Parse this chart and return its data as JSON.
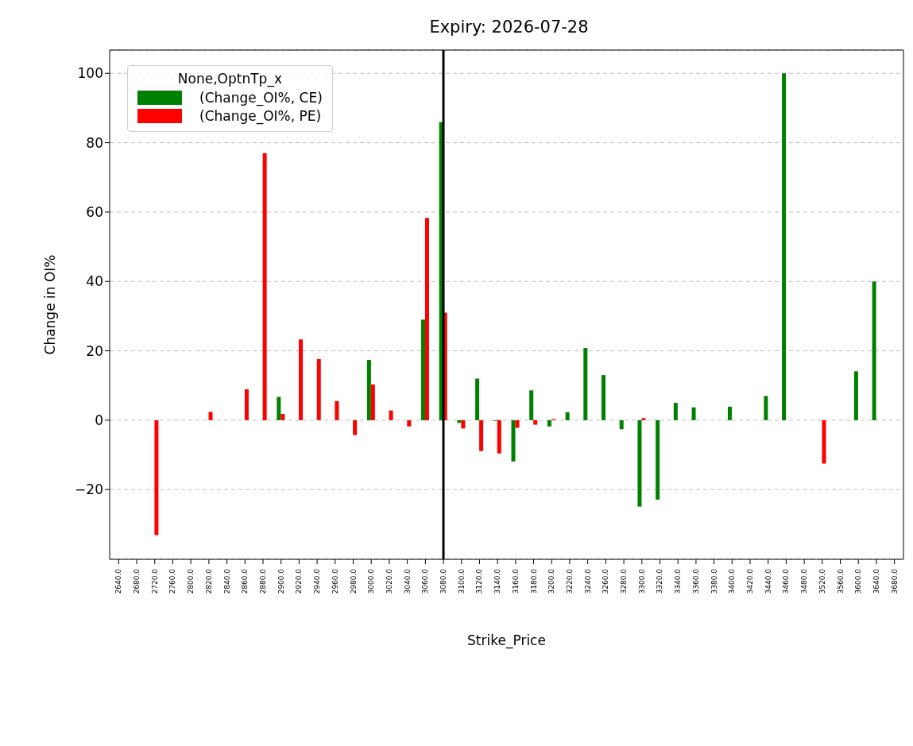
{
  "chart_data": {
    "type": "bar",
    "title": "Expiry: 2026-07-28",
    "xlabel": "Strike_Price",
    "ylabel": "Change in OI%",
    "legend_title": "None,OptnTp_x",
    "categories": [
      "2640.0",
      "2680.0",
      "2720.0",
      "2760.0",
      "2800.0",
      "2820.0",
      "2840.0",
      "2860.0",
      "2880.0",
      "2900.0",
      "2920.0",
      "2940.0",
      "2960.0",
      "2980.0",
      "3000.0",
      "3020.0",
      "3040.0",
      "3060.0",
      "3080.0",
      "3100.0",
      "3120.0",
      "3140.0",
      "3160.0",
      "3180.0",
      "3200.0",
      "3220.0",
      "3240.0",
      "3260.0",
      "3280.0",
      "3300.0",
      "3320.0",
      "3340.0",
      "3360.0",
      "3380.0",
      "3400.0",
      "3420.0",
      "3440.0",
      "3460.0",
      "3480.0",
      "3520.0",
      "3560.0",
      "3600.0",
      "3640.0",
      "3680.0"
    ],
    "series": [
      {
        "name": "(Change_OI%, CE)",
        "color": "#008000",
        "values": [
          null,
          null,
          null,
          null,
          null,
          null,
          null,
          null,
          null,
          6.7,
          null,
          null,
          null,
          null,
          17.4,
          null,
          null,
          29.0,
          85.9,
          -0.8,
          12.0,
          -0.2,
          -11.9,
          8.6,
          -1.8,
          2.3,
          20.8,
          13.0,
          -2.6,
          -24.9,
          -22.9,
          5.0,
          3.7,
          null,
          3.9,
          null,
          7.0,
          100,
          null,
          null,
          null,
          14.1,
          40.0,
          null
        ]
      },
      {
        "name": "(Change_OI%, PE)",
        "color": "#ff0000",
        "values": [
          null,
          null,
          -33.1,
          null,
          null,
          2.4,
          null,
          8.9,
          77,
          1.8,
          23.3,
          17.6,
          5.5,
          -4.3,
          10.3,
          2.8,
          -1.8,
          58.3,
          31.0,
          -2.4,
          -8.9,
          -9.6,
          -2.2,
          -1.3,
          0.3,
          null,
          null,
          null,
          null,
          0.6,
          null,
          null,
          null,
          null,
          null,
          null,
          null,
          null,
          null,
          -12.5,
          null,
          null,
          null,
          null
        ]
      }
    ],
    "ylim": [
      -40.1,
      106.7
    ],
    "yticks": [
      {
        "value": -20,
        "label": "−20"
      },
      0,
      20,
      40,
      60,
      80,
      100
    ],
    "ref_lines": [
      {
        "axis": "x",
        "value": "3080.0",
        "color": "#000000"
      }
    ],
    "grid": "y",
    "legend": "top left"
  }
}
